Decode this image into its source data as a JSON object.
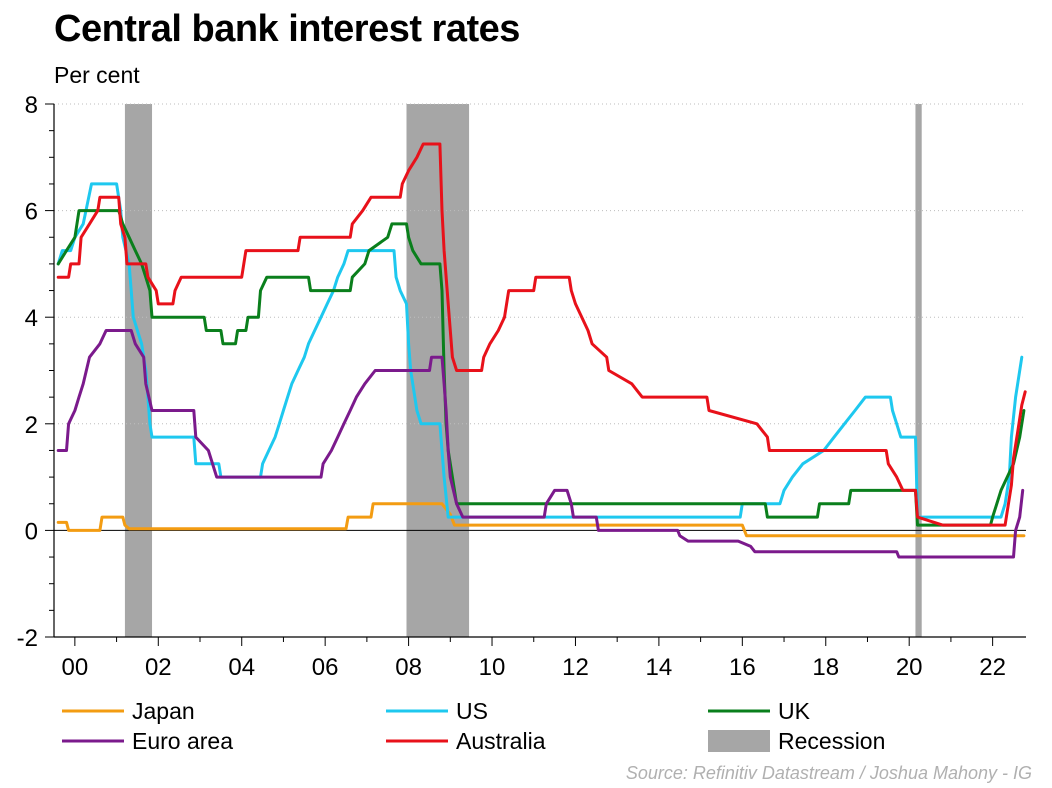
{
  "header": {
    "title": "Central bank interest rates",
    "units": "Per cent",
    "source": "Source: Refinitiv Datastream / Joshua Mahony - IG"
  },
  "chart_data": {
    "type": "line",
    "title": "Central bank interest rates",
    "ylabel": "Per cent",
    "xlim": [
      1999.5,
      2022.8
    ],
    "ylim": [
      -2,
      8
    ],
    "x_ticks": [
      {
        "value": 2000,
        "label": "00"
      },
      {
        "value": 2002,
        "label": "02"
      },
      {
        "value": 2004,
        "label": "04"
      },
      {
        "value": 2006,
        "label": "06"
      },
      {
        "value": 2008,
        "label": "08"
      },
      {
        "value": 2010,
        "label": "10"
      },
      {
        "value": 2012,
        "label": "12"
      },
      {
        "value": 2014,
        "label": "14"
      },
      {
        "value": 2016,
        "label": "16"
      },
      {
        "value": 2018,
        "label": "18"
      },
      {
        "value": 2020,
        "label": "20"
      },
      {
        "value": 2022,
        "label": "22"
      }
    ],
    "y_ticks": [
      {
        "value": -2,
        "label": "-2"
      },
      {
        "value": 0,
        "label": "0"
      },
      {
        "value": 2,
        "label": "2"
      },
      {
        "value": 4,
        "label": "4"
      },
      {
        "value": 6,
        "label": "6"
      },
      {
        "value": 8,
        "label": "8"
      }
    ],
    "grid": "horizontal dotted",
    "legend_position": "bottom",
    "recessions": [
      {
        "start": 2001.2,
        "end": 2001.85
      },
      {
        "start": 2007.95,
        "end": 2009.45
      },
      {
        "start": 2020.15,
        "end": 2020.3
      }
    ],
    "recession_label": "Recession",
    "recession_color": "#a6a6a6",
    "series": [
      {
        "name": "Japan",
        "color": "#f39c12",
        "points": [
          [
            1999.6,
            0.15
          ],
          [
            1999.8,
            0.15
          ],
          [
            1999.85,
            0
          ],
          [
            2000.6,
            0
          ],
          [
            2000.65,
            0.25
          ],
          [
            2001.15,
            0.25
          ],
          [
            2001.2,
            0.1
          ],
          [
            2001.3,
            0.03
          ],
          [
            2006.5,
            0.03
          ],
          [
            2006.55,
            0.25
          ],
          [
            2007.1,
            0.25
          ],
          [
            2007.15,
            0.5
          ],
          [
            2008.8,
            0.5
          ],
          [
            2009.0,
            0.3
          ],
          [
            2009.1,
            0.1
          ],
          [
            2016.0,
            0.1
          ],
          [
            2016.1,
            -0.1
          ],
          [
            2022.75,
            -0.1
          ]
        ]
      },
      {
        "name": "US",
        "color": "#1ec8ef",
        "points": [
          [
            1999.6,
            5.0
          ],
          [
            1999.7,
            5.25
          ],
          [
            1999.9,
            5.25
          ],
          [
            2000.0,
            5.5
          ],
          [
            2000.2,
            5.75
          ],
          [
            2000.4,
            6.5
          ],
          [
            2001.0,
            6.5
          ],
          [
            2001.1,
            6.0
          ],
          [
            2001.15,
            5.5
          ],
          [
            2001.3,
            5.0
          ],
          [
            2001.35,
            4.5
          ],
          [
            2001.4,
            4.0
          ],
          [
            2001.5,
            3.75
          ],
          [
            2001.6,
            3.5
          ],
          [
            2001.7,
            3.0
          ],
          [
            2001.75,
            2.5
          ],
          [
            2001.8,
            2.0
          ],
          [
            2001.85,
            1.75
          ],
          [
            2002.85,
            1.75
          ],
          [
            2002.9,
            1.25
          ],
          [
            2003.45,
            1.25
          ],
          [
            2003.5,
            1.0
          ],
          [
            2004.45,
            1.0
          ],
          [
            2004.5,
            1.25
          ],
          [
            2004.65,
            1.5
          ],
          [
            2004.8,
            1.75
          ],
          [
            2004.9,
            2.0
          ],
          [
            2005.0,
            2.25
          ],
          [
            2005.1,
            2.5
          ],
          [
            2005.2,
            2.75
          ],
          [
            2005.35,
            3.0
          ],
          [
            2005.5,
            3.25
          ],
          [
            2005.6,
            3.5
          ],
          [
            2005.75,
            3.75
          ],
          [
            2005.9,
            4.0
          ],
          [
            2006.05,
            4.25
          ],
          [
            2006.2,
            4.5
          ],
          [
            2006.3,
            4.75
          ],
          [
            2006.45,
            5.0
          ],
          [
            2006.55,
            5.25
          ],
          [
            2007.65,
            5.25
          ],
          [
            2007.7,
            4.75
          ],
          [
            2007.8,
            4.5
          ],
          [
            2007.95,
            4.25
          ],
          [
            2008.0,
            3.5
          ],
          [
            2008.05,
            3.0
          ],
          [
            2008.2,
            2.25
          ],
          [
            2008.3,
            2.0
          ],
          [
            2008.75,
            2.0
          ],
          [
            2008.8,
            1.5
          ],
          [
            2008.85,
            1.0
          ],
          [
            2008.95,
            0.25
          ],
          [
            2015.95,
            0.25
          ],
          [
            2016.0,
            0.5
          ],
          [
            2016.9,
            0.5
          ],
          [
            2017.0,
            0.75
          ],
          [
            2017.2,
            1.0
          ],
          [
            2017.45,
            1.25
          ],
          [
            2017.95,
            1.5
          ],
          [
            2018.2,
            1.75
          ],
          [
            2018.45,
            2.0
          ],
          [
            2018.7,
            2.25
          ],
          [
            2018.95,
            2.5
          ],
          [
            2019.55,
            2.5
          ],
          [
            2019.6,
            2.25
          ],
          [
            2019.7,
            2.0
          ],
          [
            2019.8,
            1.75
          ],
          [
            2020.15,
            1.75
          ],
          [
            2020.2,
            0.25
          ],
          [
            2022.2,
            0.25
          ],
          [
            2022.3,
            0.5
          ],
          [
            2022.4,
            1.0
          ],
          [
            2022.45,
            1.75
          ],
          [
            2022.55,
            2.5
          ],
          [
            2022.7,
            3.25
          ]
        ]
      },
      {
        "name": "UK",
        "color": "#0a7f1c",
        "points": [
          [
            1999.6,
            5.0
          ],
          [
            1999.8,
            5.25
          ],
          [
            2000.0,
            5.5
          ],
          [
            2000.1,
            6.0
          ],
          [
            2001.05,
            6.0
          ],
          [
            2001.15,
            5.75
          ],
          [
            2001.3,
            5.5
          ],
          [
            2001.45,
            5.25
          ],
          [
            2001.6,
            5.0
          ],
          [
            2001.7,
            4.75
          ],
          [
            2001.8,
            4.5
          ],
          [
            2001.85,
            4.0
          ],
          [
            2003.1,
            4.0
          ],
          [
            2003.15,
            3.75
          ],
          [
            2003.5,
            3.75
          ],
          [
            2003.55,
            3.5
          ],
          [
            2003.85,
            3.5
          ],
          [
            2003.9,
            3.75
          ],
          [
            2004.1,
            3.75
          ],
          [
            2004.15,
            4.0
          ],
          [
            2004.4,
            4.0
          ],
          [
            2004.45,
            4.5
          ],
          [
            2004.6,
            4.75
          ],
          [
            2005.6,
            4.75
          ],
          [
            2005.65,
            4.5
          ],
          [
            2006.6,
            4.5
          ],
          [
            2006.65,
            4.75
          ],
          [
            2006.95,
            5.0
          ],
          [
            2007.05,
            5.25
          ],
          [
            2007.5,
            5.5
          ],
          [
            2007.6,
            5.75
          ],
          [
            2007.95,
            5.75
          ],
          [
            2008.0,
            5.5
          ],
          [
            2008.1,
            5.25
          ],
          [
            2008.3,
            5.0
          ],
          [
            2008.75,
            5.0
          ],
          [
            2008.8,
            4.5
          ],
          [
            2008.85,
            3.0
          ],
          [
            2008.9,
            2.0
          ],
          [
            2008.95,
            1.5
          ],
          [
            2009.05,
            1.0
          ],
          [
            2009.15,
            0.5
          ],
          [
            2016.55,
            0.5
          ],
          [
            2016.6,
            0.25
          ],
          [
            2017.8,
            0.25
          ],
          [
            2017.85,
            0.5
          ],
          [
            2018.55,
            0.5
          ],
          [
            2018.6,
            0.75
          ],
          [
            2020.15,
            0.75
          ],
          [
            2020.2,
            0.1
          ],
          [
            2021.95,
            0.1
          ],
          [
            2022.0,
            0.25
          ],
          [
            2022.1,
            0.5
          ],
          [
            2022.2,
            0.75
          ],
          [
            2022.35,
            1.0
          ],
          [
            2022.5,
            1.25
          ],
          [
            2022.65,
            1.75
          ],
          [
            2022.75,
            2.25
          ]
        ]
      },
      {
        "name": "Euro area",
        "color": "#7b1a8c",
        "points": [
          [
            1999.6,
            1.5
          ],
          [
            1999.8,
            1.5
          ],
          [
            1999.85,
            2.0
          ],
          [
            2000.0,
            2.25
          ],
          [
            2000.1,
            2.5
          ],
          [
            2000.2,
            2.75
          ],
          [
            2000.35,
            3.25
          ],
          [
            2000.6,
            3.5
          ],
          [
            2000.75,
            3.75
          ],
          [
            2001.35,
            3.75
          ],
          [
            2001.45,
            3.5
          ],
          [
            2001.65,
            3.25
          ],
          [
            2001.7,
            2.75
          ],
          [
            2001.85,
            2.25
          ],
          [
            2002.85,
            2.25
          ],
          [
            2002.9,
            1.75
          ],
          [
            2003.2,
            1.5
          ],
          [
            2003.4,
            1.0
          ],
          [
            2005.9,
            1.0
          ],
          [
            2005.95,
            1.25
          ],
          [
            2006.15,
            1.5
          ],
          [
            2006.3,
            1.75
          ],
          [
            2006.45,
            2.0
          ],
          [
            2006.6,
            2.25
          ],
          [
            2006.75,
            2.5
          ],
          [
            2006.95,
            2.75
          ],
          [
            2007.2,
            3.0
          ],
          [
            2008.5,
            3.0
          ],
          [
            2008.55,
            3.25
          ],
          [
            2008.8,
            3.25
          ],
          [
            2008.85,
            2.75
          ],
          [
            2008.9,
            2.25
          ],
          [
            2008.95,
            1.5
          ],
          [
            2009.0,
            1.0
          ],
          [
            2009.15,
            0.5
          ],
          [
            2009.3,
            0.25
          ],
          [
            2011.25,
            0.25
          ],
          [
            2011.3,
            0.5
          ],
          [
            2011.5,
            0.75
          ],
          [
            2011.8,
            0.75
          ],
          [
            2011.9,
            0.5
          ],
          [
            2011.95,
            0.25
          ],
          [
            2012.5,
            0.25
          ],
          [
            2012.55,
            0
          ],
          [
            2014.45,
            0
          ],
          [
            2014.5,
            -0.1
          ],
          [
            2014.7,
            -0.2
          ],
          [
            2015.9,
            -0.2
          ],
          [
            2016.2,
            -0.3
          ],
          [
            2016.3,
            -0.4
          ],
          [
            2019.7,
            -0.4
          ],
          [
            2019.75,
            -0.5
          ],
          [
            2022.5,
            -0.5
          ],
          [
            2022.55,
            0
          ],
          [
            2022.65,
            0.25
          ],
          [
            2022.72,
            0.75
          ]
        ]
      },
      {
        "name": "Australia",
        "color": "#e8111a",
        "points": [
          [
            1999.6,
            4.75
          ],
          [
            1999.85,
            4.75
          ],
          [
            1999.9,
            5.0
          ],
          [
            2000.1,
            5.0
          ],
          [
            2000.15,
            5.5
          ],
          [
            2000.35,
            5.75
          ],
          [
            2000.55,
            6.0
          ],
          [
            2000.6,
            6.25
          ],
          [
            2001.05,
            6.25
          ],
          [
            2001.1,
            5.75
          ],
          [
            2001.2,
            5.5
          ],
          [
            2001.25,
            5.0
          ],
          [
            2001.7,
            5.0
          ],
          [
            2001.75,
            4.75
          ],
          [
            2001.95,
            4.5
          ],
          [
            2002.0,
            4.25
          ],
          [
            2002.35,
            4.25
          ],
          [
            2002.4,
            4.5
          ],
          [
            2002.55,
            4.75
          ],
          [
            2004.0,
            4.75
          ],
          [
            2004.05,
            5.0
          ],
          [
            2004.1,
            5.25
          ],
          [
            2005.35,
            5.25
          ],
          [
            2005.4,
            5.5
          ],
          [
            2006.6,
            5.5
          ],
          [
            2006.65,
            5.75
          ],
          [
            2006.9,
            6.0
          ],
          [
            2007.1,
            6.25
          ],
          [
            2007.8,
            6.25
          ],
          [
            2007.85,
            6.5
          ],
          [
            2008.0,
            6.75
          ],
          [
            2008.2,
            7.0
          ],
          [
            2008.35,
            7.25
          ],
          [
            2008.75,
            7.25
          ],
          [
            2008.8,
            6.0
          ],
          [
            2008.85,
            5.25
          ],
          [
            2008.95,
            4.25
          ],
          [
            2009.05,
            3.25
          ],
          [
            2009.15,
            3.0
          ],
          [
            2009.75,
            3.0
          ],
          [
            2009.8,
            3.25
          ],
          [
            2009.95,
            3.5
          ],
          [
            2010.15,
            3.75
          ],
          [
            2010.3,
            4.0
          ],
          [
            2010.4,
            4.5
          ],
          [
            2011.0,
            4.5
          ],
          [
            2011.05,
            4.75
          ],
          [
            2011.85,
            4.75
          ],
          [
            2011.9,
            4.5
          ],
          [
            2012.0,
            4.25
          ],
          [
            2012.3,
            3.75
          ],
          [
            2012.4,
            3.5
          ],
          [
            2012.75,
            3.25
          ],
          [
            2012.8,
            3.0
          ],
          [
            2013.35,
            2.75
          ],
          [
            2013.6,
            2.5
          ],
          [
            2015.15,
            2.5
          ],
          [
            2015.2,
            2.25
          ],
          [
            2016.35,
            2.0
          ],
          [
            2016.6,
            1.75
          ],
          [
            2016.65,
            1.5
          ],
          [
            2019.45,
            1.5
          ],
          [
            2019.5,
            1.25
          ],
          [
            2019.7,
            1.0
          ],
          [
            2019.85,
            0.75
          ],
          [
            2020.15,
            0.75
          ],
          [
            2020.2,
            0.25
          ],
          [
            2020.8,
            0.1
          ],
          [
            2022.3,
            0.1
          ],
          [
            2022.35,
            0.35
          ],
          [
            2022.45,
            0.85
          ],
          [
            2022.5,
            1.35
          ],
          [
            2022.6,
            1.85
          ],
          [
            2022.7,
            2.35
          ],
          [
            2022.78,
            2.6
          ]
        ]
      }
    ]
  }
}
